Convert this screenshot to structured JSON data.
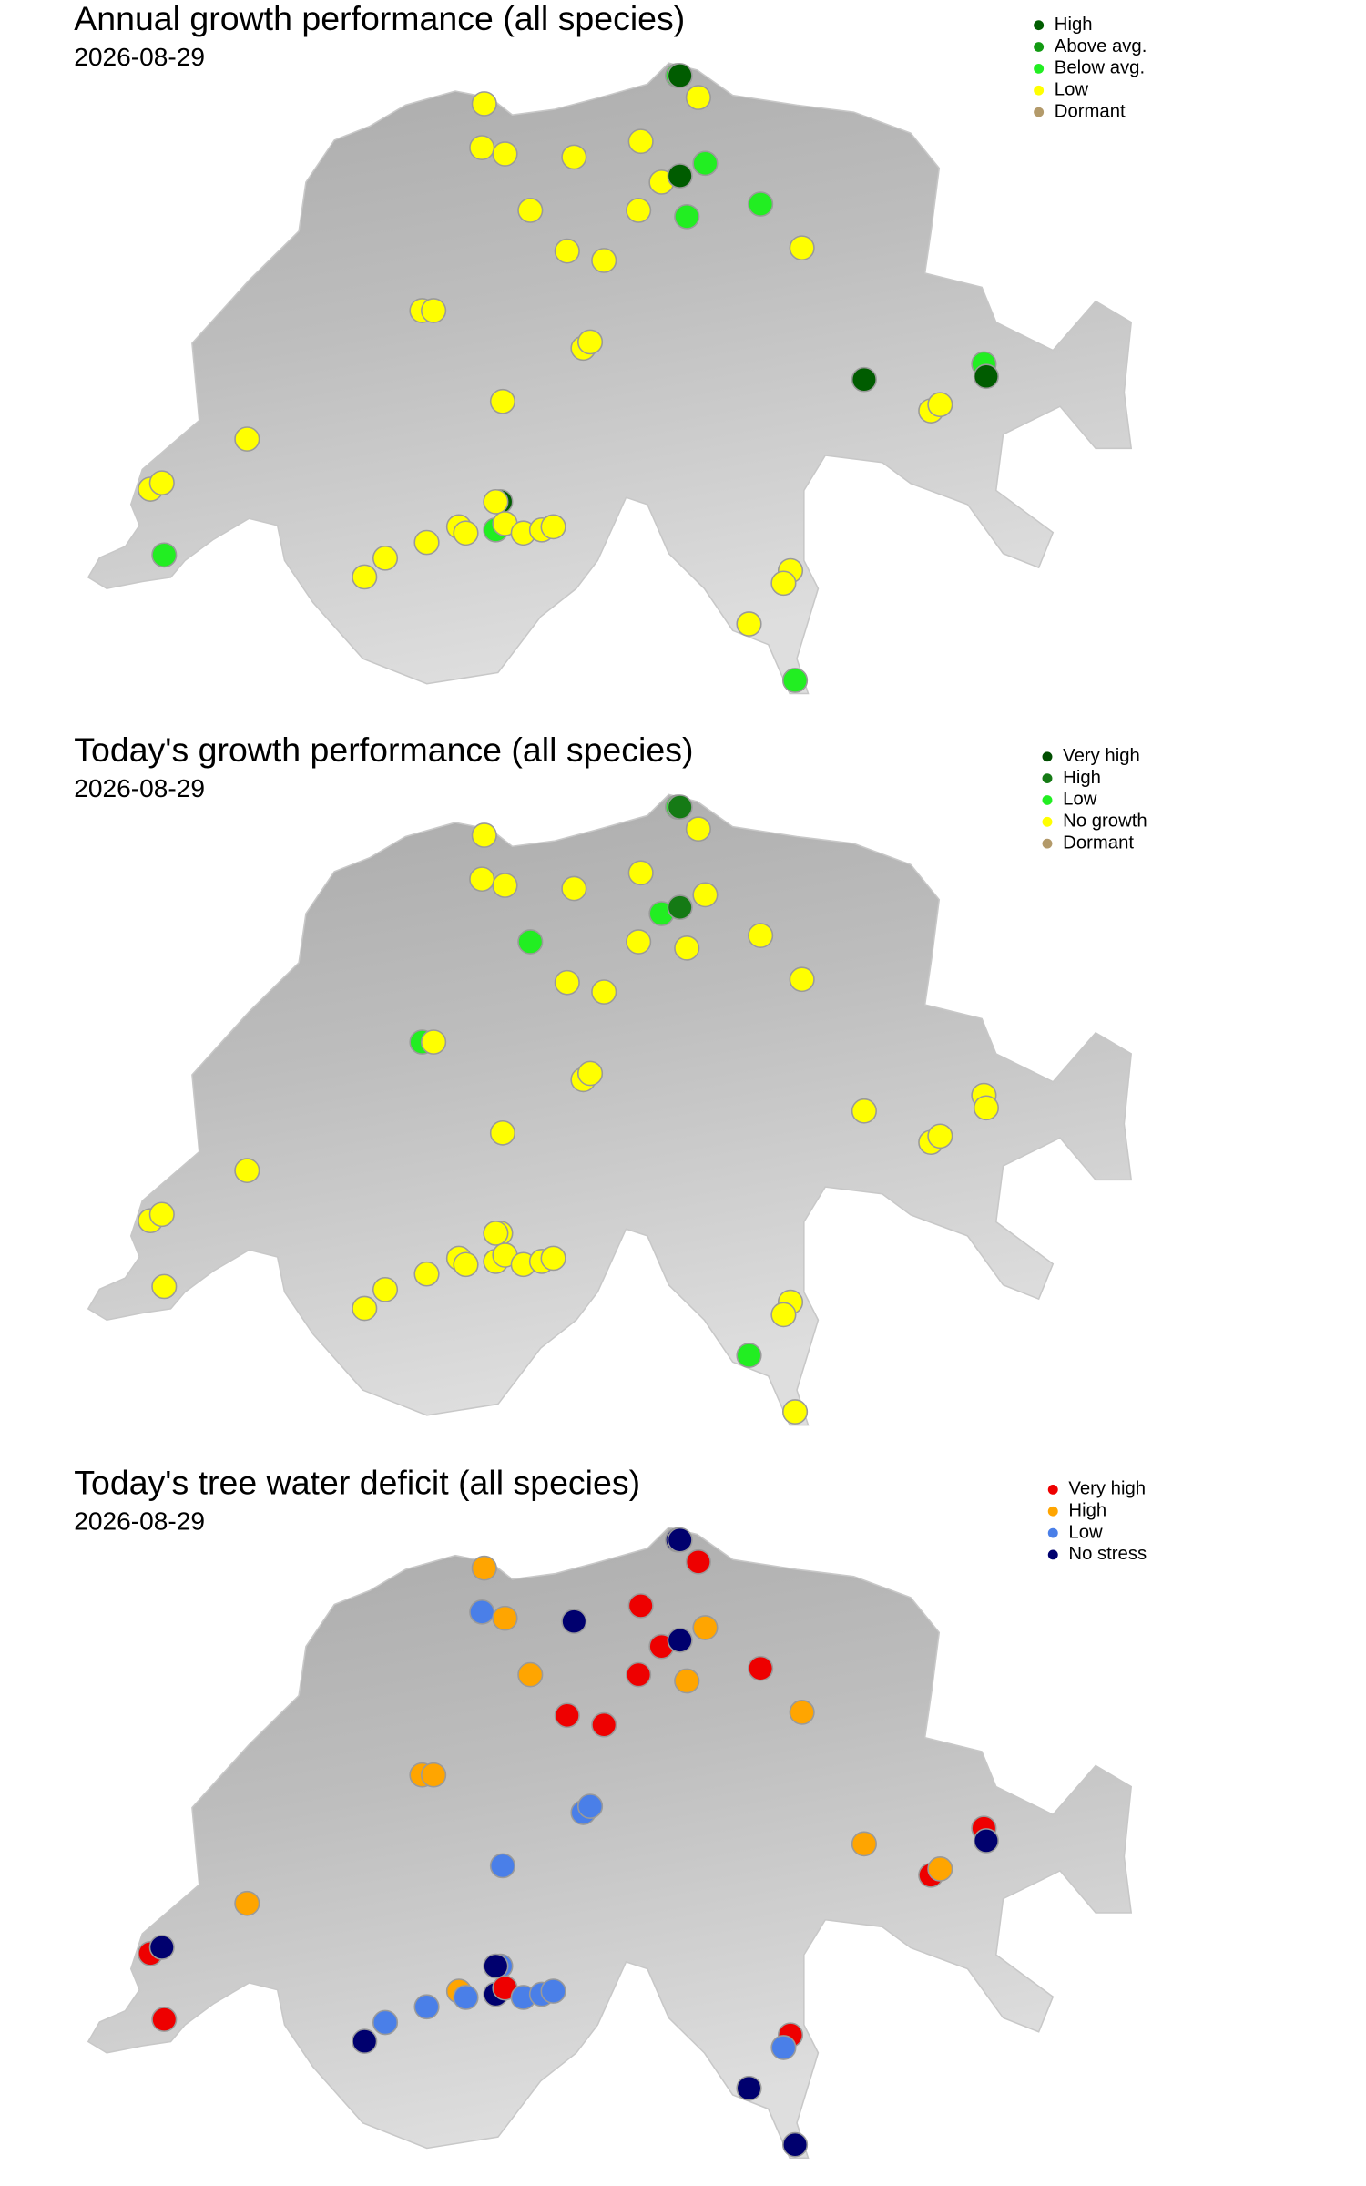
{
  "stations": [
    {
      "lon": 8.52,
      "lat": 47.77
    },
    {
      "lon": 8.53,
      "lat": 47.77
    },
    {
      "lon": 8.61,
      "lat": 47.7
    },
    {
      "lon": 7.68,
      "lat": 47.68
    },
    {
      "lon": 7.67,
      "lat": 47.54
    },
    {
      "lon": 7.77,
      "lat": 47.52
    },
    {
      "lon": 8.07,
      "lat": 47.51
    },
    {
      "lon": 8.36,
      "lat": 47.56
    },
    {
      "lon": 8.64,
      "lat": 47.49
    },
    {
      "lon": 8.45,
      "lat": 47.43
    },
    {
      "lon": 8.53,
      "lat": 47.45
    },
    {
      "lon": 7.88,
      "lat": 47.34
    },
    {
      "lon": 8.35,
      "lat": 47.34
    },
    {
      "lon": 8.56,
      "lat": 47.32
    },
    {
      "lon": 8.88,
      "lat": 47.36
    },
    {
      "lon": 9.06,
      "lat": 47.22
    },
    {
      "lon": 8.04,
      "lat": 47.21
    },
    {
      "lon": 8.2,
      "lat": 47.18
    },
    {
      "lon": 7.41,
      "lat": 47.02
    },
    {
      "lon": 7.46,
      "lat": 47.02
    },
    {
      "lon": 8.11,
      "lat": 46.9
    },
    {
      "lon": 8.14,
      "lat": 46.92
    },
    {
      "lon": 9.33,
      "lat": 46.8
    },
    {
      "lon": 9.85,
      "lat": 46.85
    },
    {
      "lon": 9.86,
      "lat": 46.81
    },
    {
      "lon": 9.62,
      "lat": 46.7
    },
    {
      "lon": 9.66,
      "lat": 46.72
    },
    {
      "lon": 7.76,
      "lat": 46.73
    },
    {
      "lon": 6.65,
      "lat": 46.61
    },
    {
      "lon": 6.23,
      "lat": 46.45
    },
    {
      "lon": 6.28,
      "lat": 46.47
    },
    {
      "lon": 6.29,
      "lat": 46.24
    },
    {
      "lon": 7.75,
      "lat": 46.41
    },
    {
      "lon": 7.73,
      "lat": 46.41
    },
    {
      "lon": 7.57,
      "lat": 46.33
    },
    {
      "lon": 7.6,
      "lat": 46.31
    },
    {
      "lon": 7.73,
      "lat": 46.32
    },
    {
      "lon": 7.77,
      "lat": 46.34
    },
    {
      "lon": 7.85,
      "lat": 46.31
    },
    {
      "lon": 7.93,
      "lat": 46.32
    },
    {
      "lon": 7.98,
      "lat": 46.33
    },
    {
      "lon": 7.43,
      "lat": 46.28
    },
    {
      "lon": 7.25,
      "lat": 46.23
    },
    {
      "lon": 7.16,
      "lat": 46.17
    },
    {
      "lon": 9.01,
      "lat": 46.19
    },
    {
      "lon": 8.98,
      "lat": 46.15
    },
    {
      "lon": 8.83,
      "lat": 46.02
    },
    {
      "lon": 9.03,
      "lat": 45.84
    }
  ],
  "panels": [
    {
      "title": "Annual growth performance (all species)",
      "date": "2026-08-29",
      "legend": [
        {
          "label": "High",
          "color": "#005c00"
        },
        {
          "label": "Above avg.",
          "color": "#129a12"
        },
        {
          "label": "Below avg.",
          "color": "#22ee22"
        },
        {
          "label": "Low",
          "color": "#ffff00"
        },
        {
          "label": "Dormant",
          "color": "#b39a6a"
        }
      ],
      "status": [
        "Below avg.",
        "High",
        "Low",
        "Low",
        "Low",
        "Low",
        "Low",
        "Low",
        "Below avg.",
        "Low",
        "High",
        "Low",
        "Low",
        "Below avg.",
        "Below avg.",
        "Low",
        "Low",
        "Low",
        "Low",
        "Low",
        "Low",
        "Low",
        "High",
        "Below avg.",
        "High",
        "Low",
        "Low",
        "Low",
        "Low",
        "Low",
        "Low",
        "Below avg.",
        "High",
        "Low",
        "Low",
        "Low",
        "Below avg.",
        "Low",
        "Low",
        "Low",
        "Low",
        "Low",
        "Low",
        "Low",
        "Low",
        "Low",
        "Low",
        "Below avg."
      ]
    },
    {
      "title": "Today's growth performance (all species)",
      "date": "2026-08-29",
      "legend": [
        {
          "label": "Very high",
          "color": "#004d00"
        },
        {
          "label": "High",
          "color": "#157a15"
        },
        {
          "label": "Low",
          "color": "#22ee22"
        },
        {
          "label": "No growth",
          "color": "#ffff00"
        },
        {
          "label": "Dormant",
          "color": "#b39a6a"
        }
      ],
      "status": [
        "Low",
        "High",
        "No growth",
        "No growth",
        "No growth",
        "No growth",
        "No growth",
        "No growth",
        "No growth",
        "Low",
        "High",
        "Low",
        "No growth",
        "No growth",
        "No growth",
        "No growth",
        "No growth",
        "No growth",
        "Low",
        "No growth",
        "No growth",
        "No growth",
        "No growth",
        "No growth",
        "No growth",
        "No growth",
        "No growth",
        "No growth",
        "No growth",
        "No growth",
        "No growth",
        "No growth",
        "No growth",
        "No growth",
        "No growth",
        "No growth",
        "No growth",
        "No growth",
        "No growth",
        "No growth",
        "No growth",
        "No growth",
        "No growth",
        "No growth",
        "No growth",
        "No growth",
        "Low",
        "No growth"
      ]
    },
    {
      "title": "Today's tree water deficit (all species)",
      "date": "2026-08-29",
      "legend": [
        {
          "label": "Very high",
          "color": "#ee0000"
        },
        {
          "label": "High",
          "color": "#ffa500"
        },
        {
          "label": "Low",
          "color": "#4a7fe8"
        },
        {
          "label": "No stress",
          "color": "#00006e"
        }
      ],
      "status": [
        "No stress",
        "No stress",
        "Very high",
        "High",
        "Low",
        "High",
        "No stress",
        "Very high",
        "High",
        "Very high",
        "No stress",
        "High",
        "Very high",
        "High",
        "Very high",
        "High",
        "Very high",
        "Very high",
        "High",
        "High",
        "Low",
        "Low",
        "High",
        "Very high",
        "No stress",
        "Very high",
        "High",
        "Low",
        "High",
        "Very high",
        "No stress",
        "Very high",
        "Low",
        "No stress",
        "High",
        "Low",
        "No stress",
        "Very high",
        "Low",
        "Low",
        "Low",
        "Low",
        "Low",
        "No stress",
        "Very high",
        "Low",
        "No stress",
        "No stress"
      ]
    }
  ]
}
